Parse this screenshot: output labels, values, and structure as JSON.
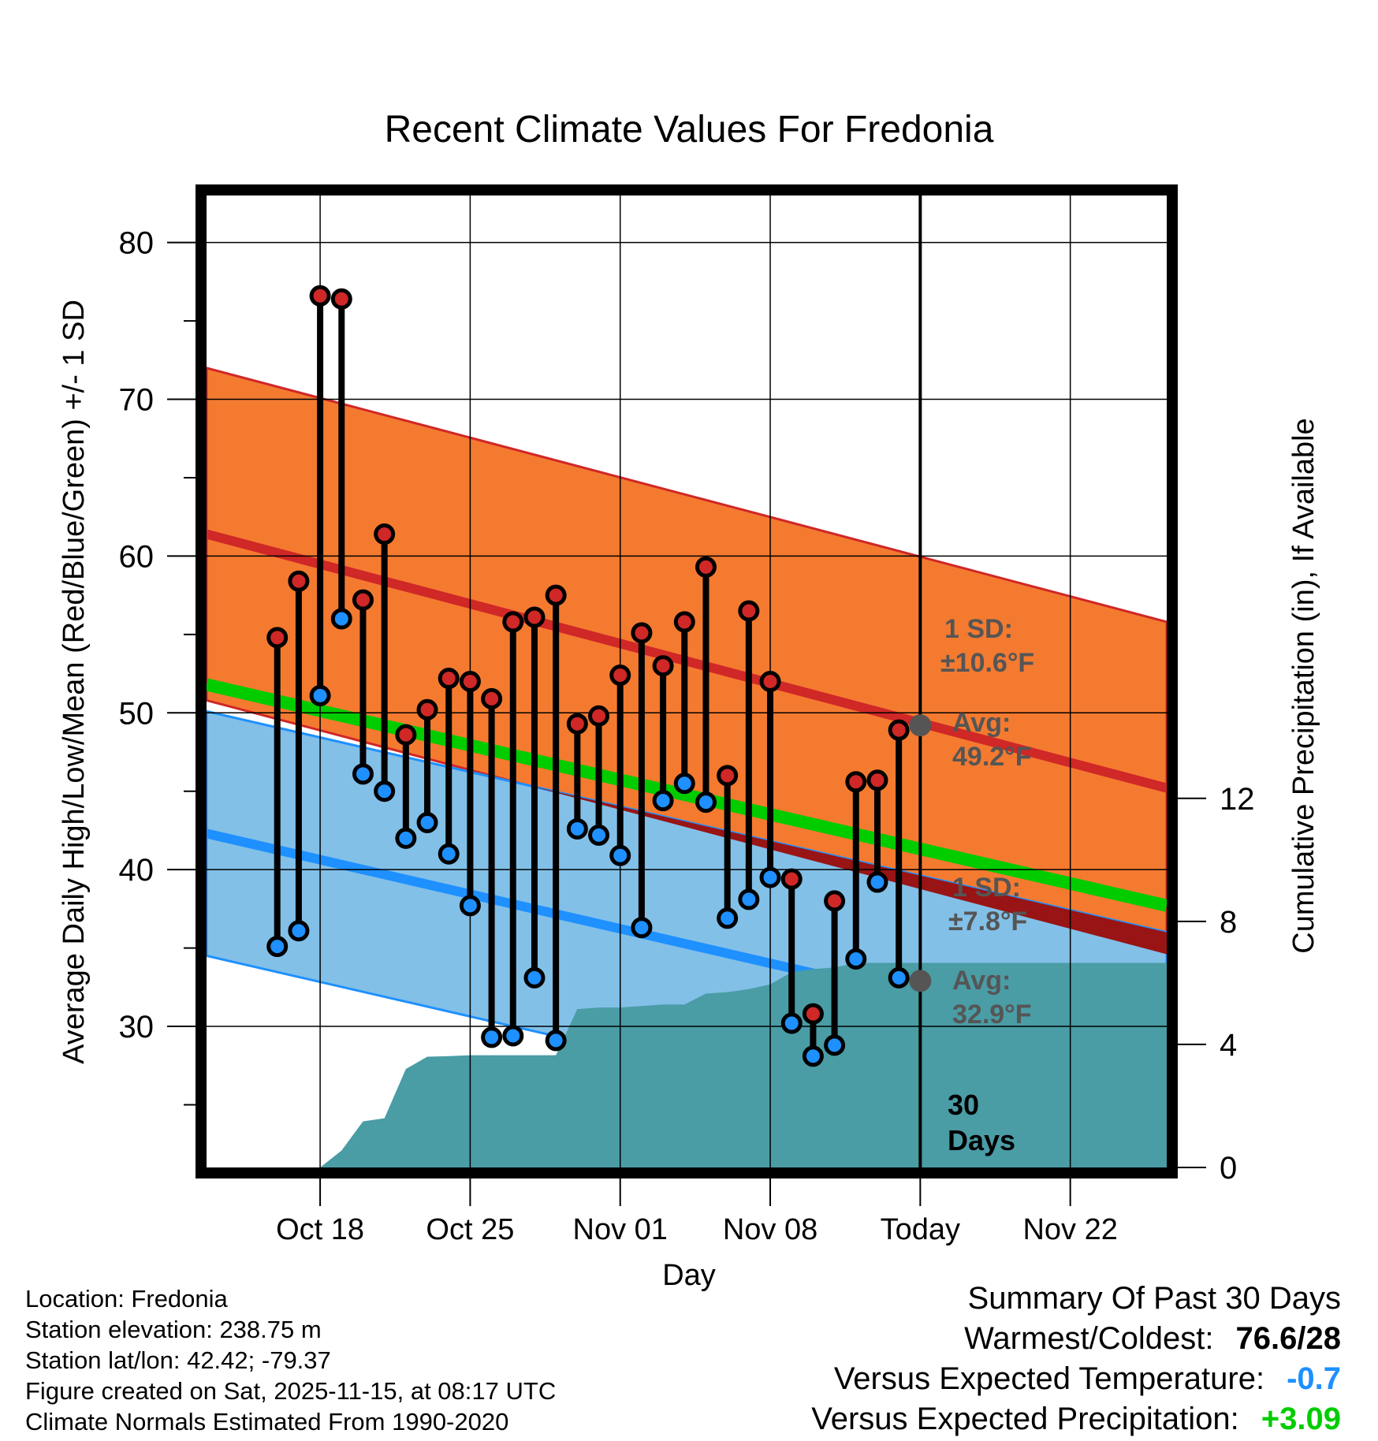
{
  "chart_data": {
    "type": "line",
    "title": "Recent Climate Values For Fredonia",
    "xlabel": "Day",
    "ylabel_left": "Average Daily High/Low/Mean (Red/Blue/Green) +/- 1 SD",
    "ylabel_right": "Cumulative Precipitation (in), If Available",
    "x_range_days": [
      -33.3,
      11.5
    ],
    "ylim_left": [
      21,
      83
    ],
    "ylim_right": [
      0,
      31.6
    ],
    "x_ticks": [
      {
        "day": -28,
        "label": "Oct 18"
      },
      {
        "day": -21,
        "label": "Oct 25"
      },
      {
        "day": -14,
        "label": "Nov 01"
      },
      {
        "day": -7,
        "label": "Nov 08"
      },
      {
        "day": 0,
        "label": "Today"
      },
      {
        "day": 7,
        "label": "Nov 22"
      }
    ],
    "y_ticks_left": [
      30,
      40,
      50,
      60,
      70,
      80
    ],
    "y_ticks_right": [
      0,
      4,
      8,
      12
    ],
    "today_marker": {
      "day": 0,
      "label_line1": "30",
      "label_line2": "Days"
    },
    "normal_high": {
      "start": 61.4,
      "end": 45.2,
      "sd_label": "1 SD:",
      "sd_value": "±10.6°F",
      "avg_label": "Avg:",
      "avg_value": "49.2°F",
      "today_value": 49.2
    },
    "normal_low": {
      "start": 42.3,
      "end": 28.2,
      "sd_label": "1 SD:",
      "sd_value": "±7.8°F",
      "avg_label": "Avg:",
      "avg_value": "32.9°F",
      "today_value": 32.9
    },
    "normal_mean": {
      "start": 51.8,
      "end": 37.7
    },
    "high_sd": 10.6,
    "low_sd": 7.8,
    "series": [
      {
        "name": "Daily High",
        "days": [
          -30,
          -29,
          -28,
          -27,
          -26,
          -25,
          -24,
          -23,
          -22,
          -21,
          -20,
          -19,
          -18,
          -17,
          -16,
          -15,
          -14,
          -13,
          -12,
          -11,
          -10,
          -9,
          -8,
          -7,
          -6,
          -5,
          -4,
          -3,
          -2,
          -1
        ],
        "values": [
          54.8,
          58.4,
          76.6,
          76.4,
          57.2,
          61.4,
          48.6,
          50.2,
          52.2,
          52,
          50.9,
          55.8,
          56.1,
          57.5,
          49.3,
          49.8,
          52.4,
          55.1,
          53,
          55.8,
          59.3,
          46,
          56.5,
          52,
          39.4,
          30.8,
          38,
          45.6,
          45.7,
          48.9
        ]
      },
      {
        "name": "Daily Low",
        "days": [
          -30,
          -29,
          -28,
          -27,
          -26,
          -25,
          -24,
          -23,
          -22,
          -21,
          -20,
          -19,
          -18,
          -17,
          -16,
          -15,
          -14,
          -13,
          -12,
          -11,
          -10,
          -9,
          -8,
          -7,
          -6,
          -5,
          -4,
          -3,
          -2,
          -1
        ],
        "values": [
          35.1,
          36.1,
          51.1,
          56,
          46.1,
          45,
          42,
          43,
          41,
          37.7,
          29.3,
          29.4,
          33.1,
          29.1,
          42.6,
          42.2,
          40.9,
          36.3,
          44.4,
          45.5,
          44.3,
          36.9,
          38.1,
          39.5,
          30.2,
          28.1,
          28.8,
          34.3,
          39.2,
          33.1
        ]
      },
      {
        "name": "Cumulative Precipitation",
        "days": [
          -28,
          -27,
          -26,
          -25,
          -24,
          -23,
          -22,
          -21,
          -20,
          -19,
          -18,
          -17,
          -16,
          -15,
          -14,
          -13,
          -12,
          -11,
          -10,
          -9,
          -8,
          -7,
          -6,
          -5,
          -4,
          -3,
          -2,
          -1,
          0
        ],
        "values": [
          0,
          0.55,
          1.5,
          1.6,
          3.2,
          3.6,
          3.62,
          3.65,
          3.65,
          3.65,
          3.65,
          3.65,
          5.15,
          5.2,
          5.2,
          5.25,
          5.3,
          5.3,
          5.65,
          5.7,
          5.8,
          5.95,
          6.35,
          6.45,
          6.5,
          6.65,
          6.65,
          6.65,
          6.65
        ]
      }
    ]
  },
  "info": {
    "location": "Location: Fredonia",
    "elevation": "Station elevation: 238.75 m",
    "latlon": "Station lat/lon: 42.42; -79.37",
    "created": "Figure created on Sat, 2025-11-15, at 08:17 UTC",
    "normals": "Climate Normals Estimated From 1990-2020"
  },
  "summary": {
    "title": "Summary Of Past 30 Days",
    "warmest_label": "Warmest/Coldest:",
    "warmest_value": "76.6/28",
    "temp_label": "Versus Expected Temperature:",
    "temp_value": "-0.7",
    "temp_color": "#1e90ff",
    "precip_label": "Versus Expected Precipitation:",
    "precip_value": "+3.09",
    "precip_color": "#00cd00"
  },
  "colors": {
    "high_band": "#f47a30",
    "high_line": "#d02727",
    "low_band": "#82c0e8",
    "low_line": "#1e90ff",
    "mean_line": "#00cc00",
    "precip_fill": "#4a9ca5",
    "overlap": "#991414",
    "stat_text": "#555555"
  }
}
